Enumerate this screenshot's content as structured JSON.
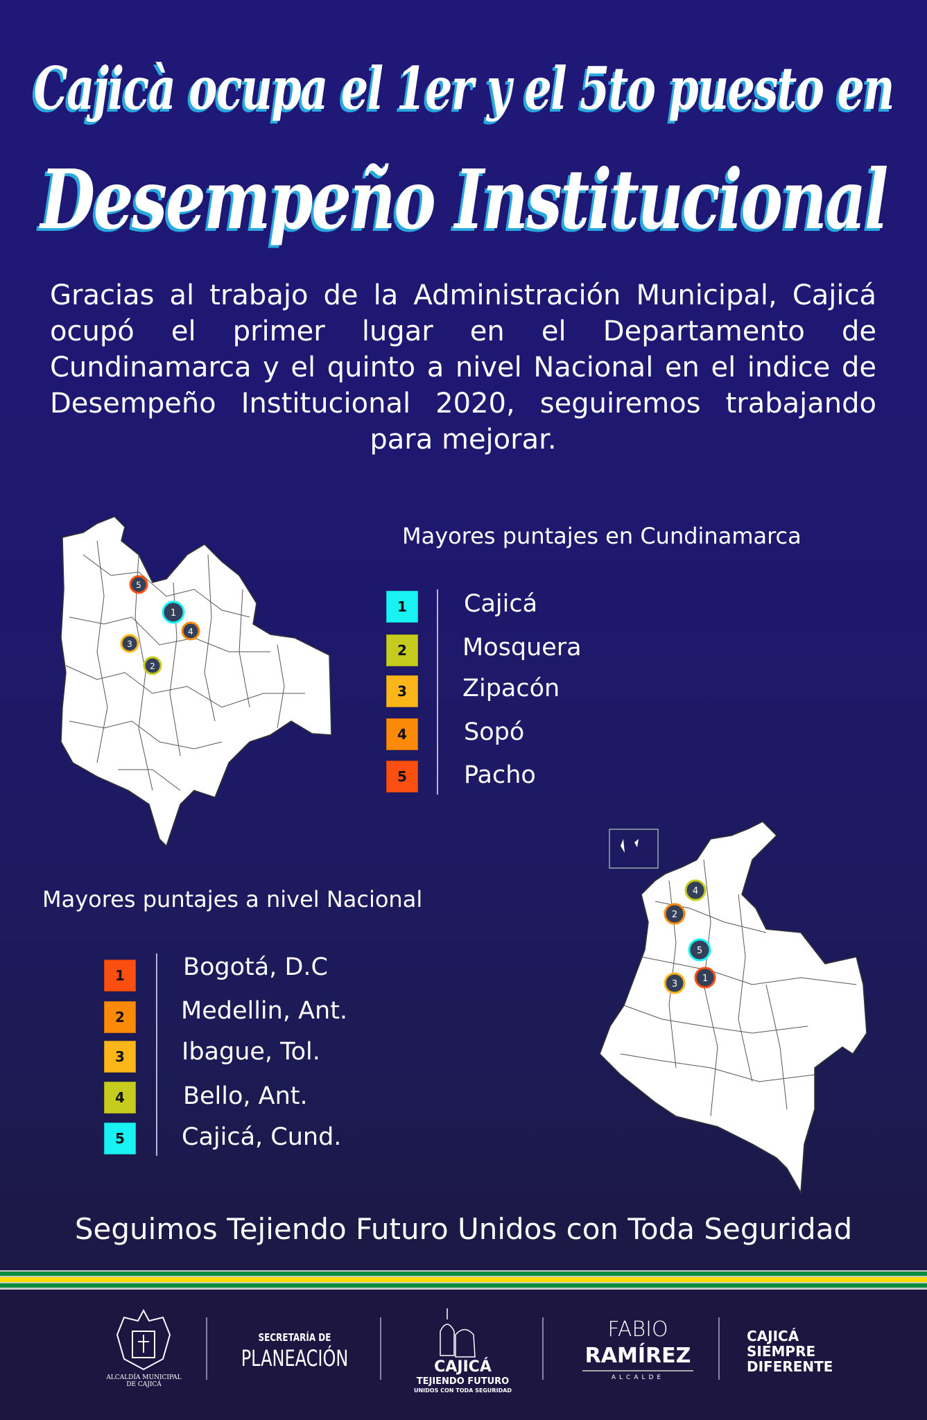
{
  "title": {
    "line1": "Cajicà ocupa el 1er y el 5to puesto en",
    "line2": "Desempeño Institucional"
  },
  "intro": "Gracias al trabajo de la Administración Municipal, Cajicá ocupó el primer lugar en el Departamento de Cundinamarca y el quinto a nivel Nacional en el indice de Desempeño Institucional 2020, seguiremos trabajando para mejorar.",
  "cundinamarca": {
    "heading": "Mayores puntajes en Cundinamarca",
    "items": [
      {
        "rank": "1",
        "name": "Cajicá",
        "color": "#19f2f2"
      },
      {
        "rank": "2",
        "name": "Mosquera",
        "color": "#c6cc1e"
      },
      {
        "rank": "3",
        "name": "Zipacón",
        "color": "#fcb61a"
      },
      {
        "rank": "4",
        "name": "Sopó",
        "color": "#fb8a08"
      },
      {
        "rank": "5",
        "name": "Pacho",
        "color": "#fb4f12"
      }
    ]
  },
  "nacional": {
    "heading": "Mayores puntajes a nivel Nacional",
    "items": [
      {
        "rank": "1",
        "name": "Bogotá, D.C",
        "color": "#fb4f12"
      },
      {
        "rank": "2",
        "name": "Medellin, Ant.",
        "color": "#fb8a08"
      },
      {
        "rank": "3",
        "name": "Ibague, Tol.",
        "color": "#fcb61a"
      },
      {
        "rank": "4",
        "name": "Bello, Ant.",
        "color": "#c6cc1e"
      },
      {
        "rank": "5",
        "name": "Cajicá, Cund.",
        "color": "#19f2f2"
      }
    ]
  },
  "slogan": "Seguimos Tejiendo Futuro Unidos con Toda Seguridad",
  "footer": {
    "alcaldia": "ALCALDÍA MUNICIPAL DE CAJICÁ",
    "secretaria_top": "SECRETARÍA DE",
    "secretaria_main": "PLANEACIÓN",
    "cajica": "CAJICÁ",
    "tejiendo": "TEJIENDO FUTURO",
    "unidos": "UNIDOS CON TODA SEGURIDAD",
    "fabio": "FABIO",
    "ramirez": "RAMÍREZ",
    "alcalde": "ALCALDE",
    "siempre1": "CAJICÁ",
    "siempre2": "SIEMPRE",
    "siempre3": "DIFERENTE"
  },
  "stripe_colors": [
    "#0b8b3c",
    "#fddc00",
    "#0b8b3c"
  ]
}
